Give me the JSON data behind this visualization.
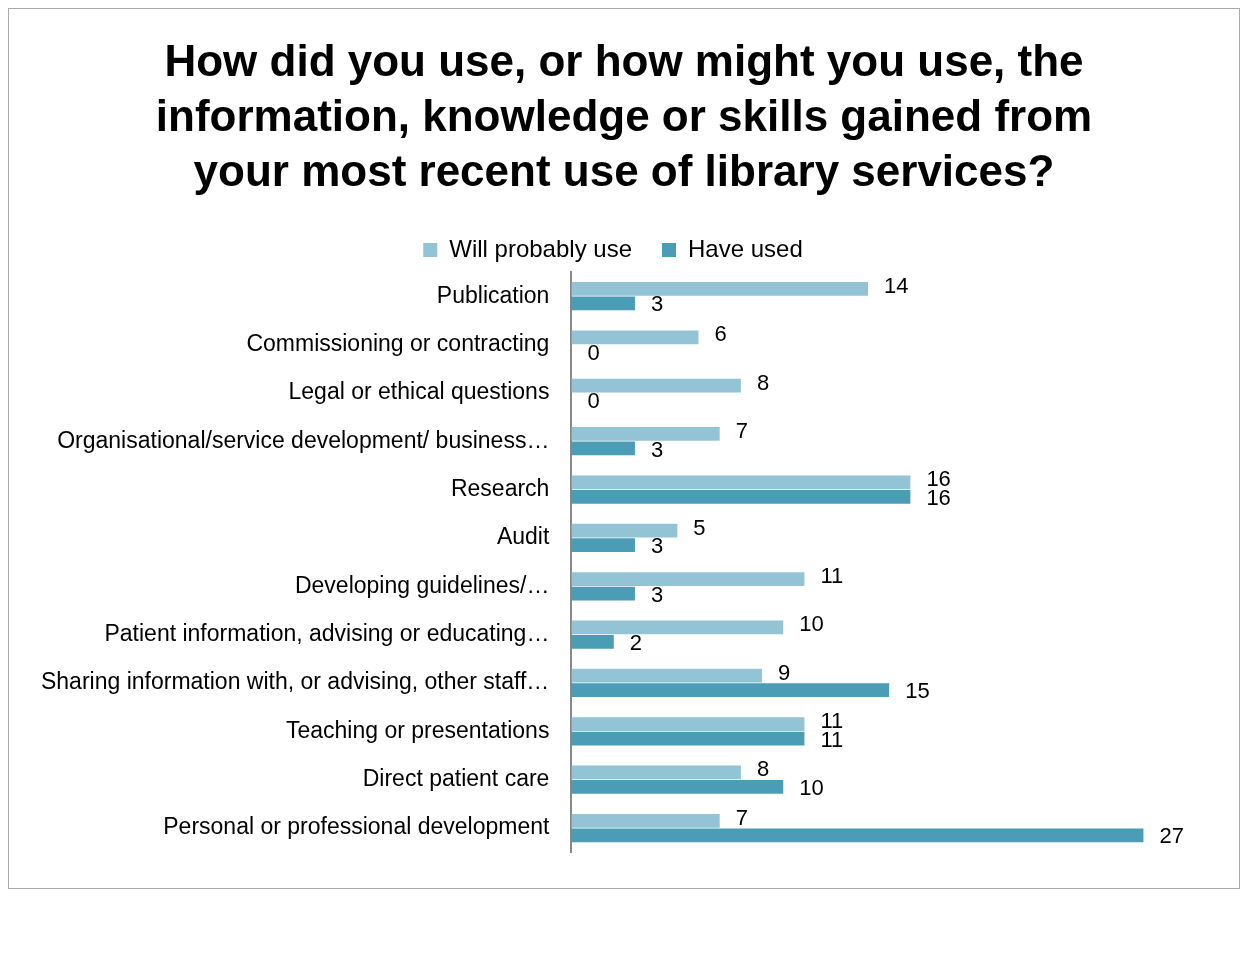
{
  "chart_data": {
    "type": "bar",
    "orientation": "horizontal",
    "title": "How did you use, or how might you use, the information, knowledge or skills gained from your most recent use of library services?",
    "categories": [
      "Publication",
      "Commissioning or contracting",
      "Legal or ethical questions",
      "Organisational/service development/ business…",
      "Research",
      "Audit",
      "Developing guidelines/…",
      "Patient information, advising or educating…",
      "Sharing information with, or advising, other staff…",
      "Teaching or presentations",
      "Direct patient care",
      "Personal or professional development"
    ],
    "series": [
      {
        "name": "Will probably use",
        "color": "#93c4d6",
        "values": [
          14,
          6,
          8,
          7,
          16,
          5,
          11,
          10,
          9,
          11,
          8,
          7
        ]
      },
      {
        "name": "Have used",
        "color": "#4a9db5",
        "values": [
          3,
          0,
          0,
          3,
          16,
          3,
          3,
          2,
          15,
          11,
          10,
          27
        ]
      }
    ],
    "data_labels": true,
    "legend": "top",
    "grid": false
  }
}
